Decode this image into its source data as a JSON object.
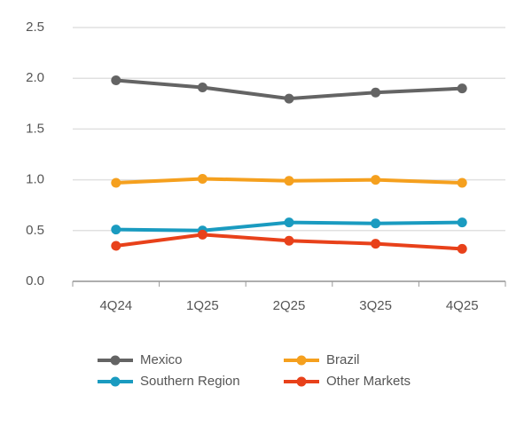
{
  "chart_data": {
    "type": "line",
    "categories": [
      "4Q24",
      "1Q25",
      "2Q25",
      "3Q25",
      "4Q25"
    ],
    "series": [
      {
        "name": "Mexico",
        "color": "#646464",
        "values": [
          1.98,
          1.91,
          1.8,
          1.86,
          1.9
        ]
      },
      {
        "name": "Brazil",
        "color": "#f5a01e",
        "values": [
          0.97,
          1.01,
          0.99,
          1.0,
          0.97
        ]
      },
      {
        "name": "Southern Region",
        "color": "#1a9bc0",
        "values": [
          0.51,
          0.5,
          0.58,
          0.57,
          0.58
        ]
      },
      {
        "name": "Other Markets",
        "color": "#e8411a",
        "values": [
          0.35,
          0.46,
          0.4,
          0.37,
          0.32
        ]
      }
    ],
    "ylim": [
      0,
      2.5
    ],
    "yticks": [
      {
        "value": 0,
        "label": "0.0"
      },
      0.5,
      {
        "value": 1,
        "label": "1.0"
      },
      1.5,
      {
        "value": 2,
        "label": "2.0"
      },
      2.5
    ],
    "grid": true
  }
}
